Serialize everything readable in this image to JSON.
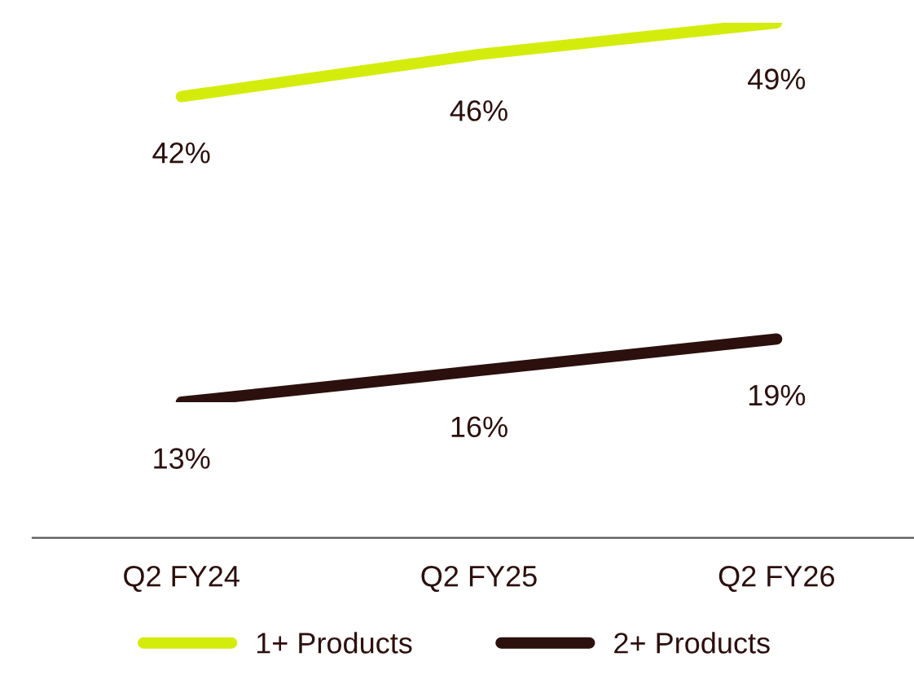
{
  "chart_data": {
    "type": "line",
    "categories": [
      "Q2 FY24",
      "Q2 FY25",
      "Q2 FY26"
    ],
    "series": [
      {
        "name": "1+ Products",
        "color": "#d4ec0c",
        "values": [
          42,
          46,
          49
        ],
        "value_labels": [
          "42%",
          "46%",
          "49%"
        ]
      },
      {
        "name": "2+ Products",
        "color": "#2b100d",
        "values": [
          13,
          16,
          19
        ],
        "value_labels": [
          "13%",
          "16%",
          "19%"
        ]
      }
    ],
    "tick_labels": "x",
    "grid": false,
    "legend": "bottom",
    "marker": "none",
    "line_style": "solid"
  }
}
